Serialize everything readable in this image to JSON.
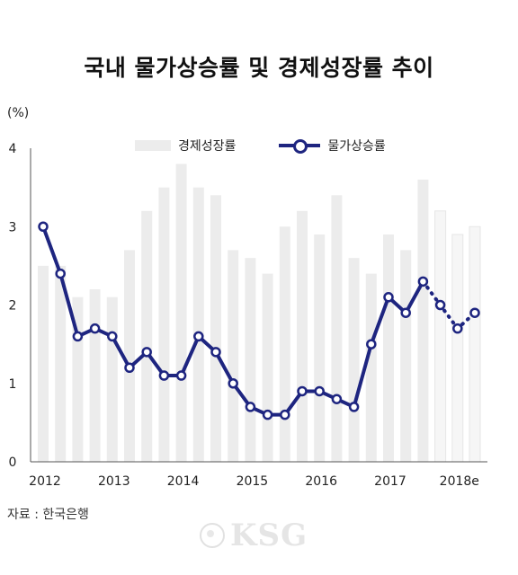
{
  "title": "국내 물가상승률 및 경제성장률 추이",
  "unit": "(%)",
  "source": "자료 : 한국은행",
  "watermark": "KSG",
  "colors": {
    "line": "#1e2580",
    "bar": "#ececec",
    "bar_forecast": "#f6f6f6",
    "axis": "#555555"
  },
  "chart_data": {
    "type": "bar",
    "title": "국내 물가상승률 및 경제성장률 추이",
    "ylabel": "(%)",
    "ylim": [
      0,
      4
    ],
    "yticks": [
      "0",
      "1",
      "2",
      "3",
      "4"
    ],
    "x_tick_labels": [
      "2012",
      "2013",
      "2014",
      "2015",
      "2016",
      "2017",
      "2018e"
    ],
    "x_tick_positions": [
      0,
      4,
      8,
      12,
      16,
      20,
      24
    ],
    "legend": "top",
    "grid": false,
    "forecast_start_index": 23,
    "series": [
      {
        "name": "경제성장률",
        "type": "bar",
        "values": [
          2.5,
          2.5,
          2.1,
          2.2,
          2.1,
          2.7,
          3.2,
          3.5,
          3.8,
          3.5,
          3.4,
          2.7,
          2.6,
          2.4,
          3.0,
          3.2,
          2.9,
          3.4,
          2.6,
          2.4,
          2.9,
          2.7,
          3.6,
          3.2,
          2.9,
          3.0
        ]
      },
      {
        "name": "물가상승률",
        "type": "line",
        "values": [
          3.0,
          2.4,
          1.6,
          1.7,
          1.6,
          1.2,
          1.4,
          1.1,
          1.1,
          1.6,
          1.4,
          1.0,
          0.7,
          0.6,
          0.6,
          0.9,
          0.9,
          0.8,
          0.7,
          1.5,
          2.1,
          1.9,
          2.3,
          2.0,
          1.7,
          1.9
        ]
      }
    ]
  }
}
